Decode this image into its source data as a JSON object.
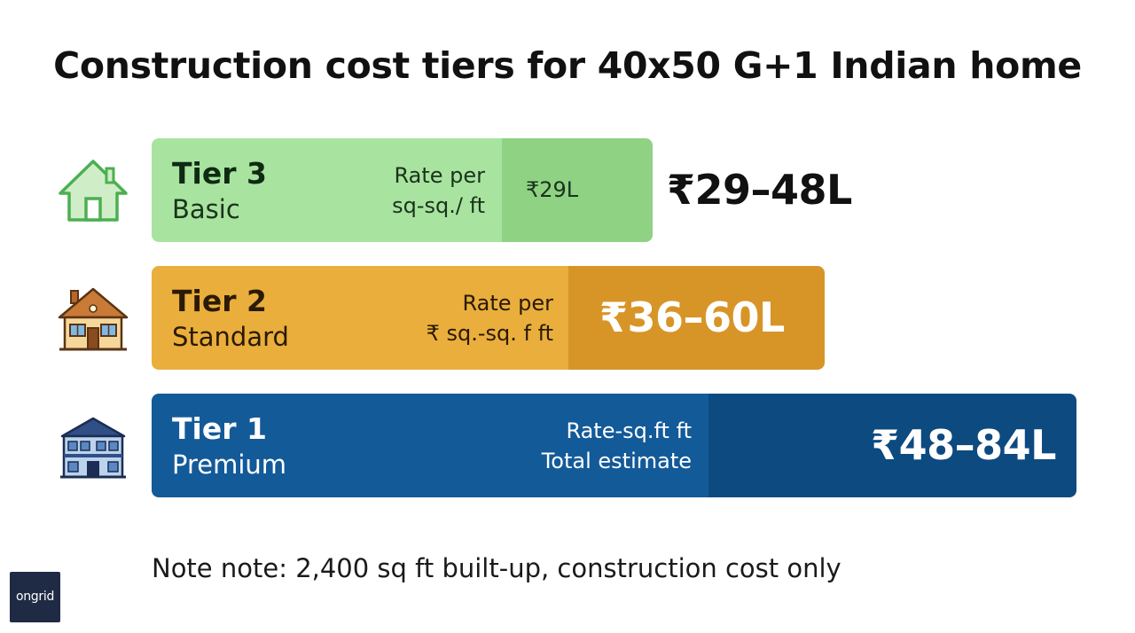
{
  "title": "Construction cost tiers for 40x50 G+1 Indian home",
  "chart_data": {
    "type": "bar",
    "title": "Construction cost tiers for 40x50 G+1 Indian home",
    "categories": [
      "Tier 3",
      "Tier 2",
      "Tier 1"
    ],
    "subcategories": [
      "Basic",
      "Standard",
      "Premium"
    ],
    "range_labels": [
      "₹29–48L",
      "₹36–60L",
      "₹48–84L"
    ],
    "ranges": [
      [
        29,
        48
      ],
      [
        36,
        60
      ],
      [
        48,
        84
      ]
    ],
    "unit": "₹ lakh",
    "rate_labels": [
      [
        "Rate per",
        "sq-sq./ ft"
      ],
      [
        "Rate per",
        "₹ sq.-sq. f ft"
      ],
      [
        "Rate-sq.ft ft",
        "Total estimate"
      ]
    ],
    "inner_labels": [
      "₹29L",
      "",
      ""
    ],
    "colors": {
      "tier3_light": "#a8e4a0",
      "tier3_dark": "#8fd284",
      "tier2_light": "#e9ae3c",
      "tier2_dark": "#d79528",
      "tier1_light": "#135a99",
      "tier1_dark": "#0d4a80"
    }
  },
  "icons": [
    "house-outline-icon",
    "house-two-storey-icon",
    "house-mansion-icon"
  ],
  "note": "Note note: 2,400 sq ft built-up, construction cost only",
  "logo": {
    "text": "ongrid"
  }
}
